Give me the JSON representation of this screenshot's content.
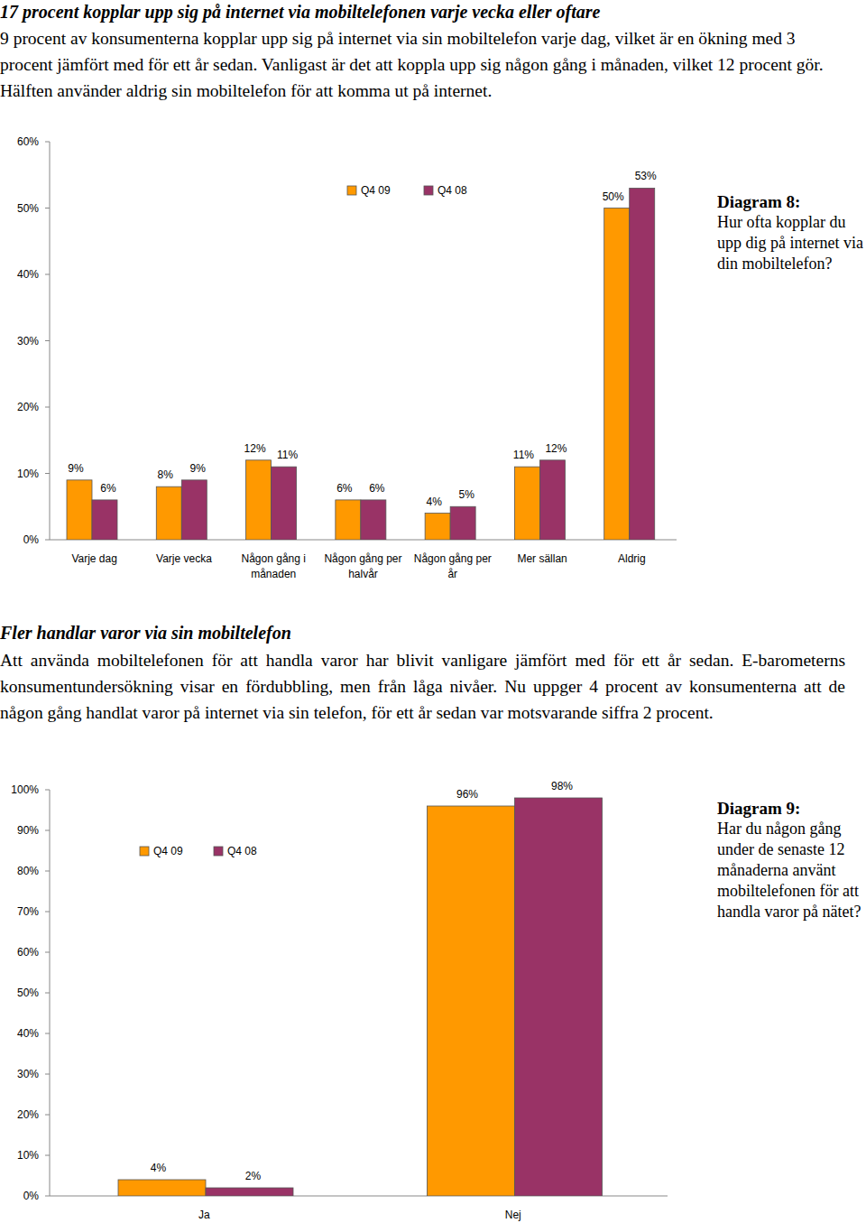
{
  "sections": [
    {
      "heading": "17 procent kopplar upp sig på internet via mobiltelefonen varje vecka eller oftare",
      "paragraph": "9 procent av konsumenterna kopplar upp sig på internet via sin mobiltelefon varje dag, vilket är en ökning med 3 procent jämfört med för ett år sedan. Vanligast är det att koppla upp sig någon gång i månaden, vilket 12 procent gör. Hälften använder aldrig sin mobiltelefon för att komma ut på internet."
    },
    {
      "heading": "Fler handlar varor via sin mobiltelefon",
      "paragraph": "Att använda mobiltelefonen för att handla varor har blivit vanligare jämfört med för ett år sedan. E-barometerns konsumentundersökning visar en fördubbling, men från låga nivåer. Nu uppger 4 procent av konsumenterna att de någon gång handlat varor på internet via sin telefon, för ett år sedan var motsvarande siffra 2 procent."
    }
  ],
  "chart_data": [
    {
      "type": "bar",
      "title": "Diagram 8:",
      "subtitle": "Hur ofta kopplar du upp dig på internet via din mobiltelefon?",
      "categories": [
        "Varje dag",
        "Varje vecka",
        "Någon gång i månaden",
        "Någon gång per halvår",
        "Någon gång per år",
        "Mer sällan",
        "Aldrig"
      ],
      "series": [
        {
          "name": "Q4 09",
          "color": "#ff9900",
          "values": [
            9,
            8,
            12,
            6,
            4,
            11,
            50
          ],
          "value_labels": [
            "9%",
            "8%",
            "12%",
            "6%",
            "4%",
            "11%",
            "50%"
          ]
        },
        {
          "name": "Q4 08",
          "color": "#993366",
          "values": [
            6,
            9,
            11,
            6,
            5,
            12,
            53
          ],
          "value_labels": [
            "6%",
            "9%",
            "11%",
            "6%",
            "5%",
            "12%",
            "53%"
          ]
        }
      ],
      "ylim": [
        0,
        60
      ],
      "yticks": [
        {
          "value": 0,
          "label": "0%"
        },
        {
          "value": 10,
          "label": "10%"
        },
        {
          "value": 20,
          "label": "20%"
        },
        {
          "value": 30,
          "label": "30%"
        },
        {
          "value": 40,
          "label": "40%"
        },
        {
          "value": 50,
          "label": "50%"
        },
        {
          "value": 60,
          "label": "60%"
        }
      ],
      "grid": false,
      "legend": "top",
      "data_labels": true
    },
    {
      "type": "bar",
      "title": "Diagram 9:",
      "subtitle": "Har du någon gång under de senaste 12 månaderna använt mobiltelefonen för att handla varor på nätet?",
      "categories": [
        "Ja",
        "Nej"
      ],
      "series": [
        {
          "name": "Q4 09",
          "color": "#ff9900",
          "values": [
            4,
            96
          ],
          "value_labels": [
            "4%",
            "96%"
          ]
        },
        {
          "name": "Q4 08",
          "color": "#993366",
          "values": [
            2,
            98
          ],
          "value_labels": [
            "2%",
            "98%"
          ]
        }
      ],
      "ylim": [
        0,
        100
      ],
      "yticks": [
        {
          "value": 0,
          "label": "0%"
        },
        {
          "value": 10,
          "label": "10%"
        },
        {
          "value": 20,
          "label": "20%"
        },
        {
          "value": 30,
          "label": "30%"
        },
        {
          "value": 40,
          "label": "40%"
        },
        {
          "value": 50,
          "label": "50%"
        },
        {
          "value": 60,
          "label": "60%"
        },
        {
          "value": 70,
          "label": "70%"
        },
        {
          "value": 80,
          "label": "80%"
        },
        {
          "value": 90,
          "label": "90%"
        },
        {
          "value": 100,
          "label": "100%"
        }
      ],
      "grid": false,
      "legend": "top",
      "data_labels": true
    }
  ]
}
